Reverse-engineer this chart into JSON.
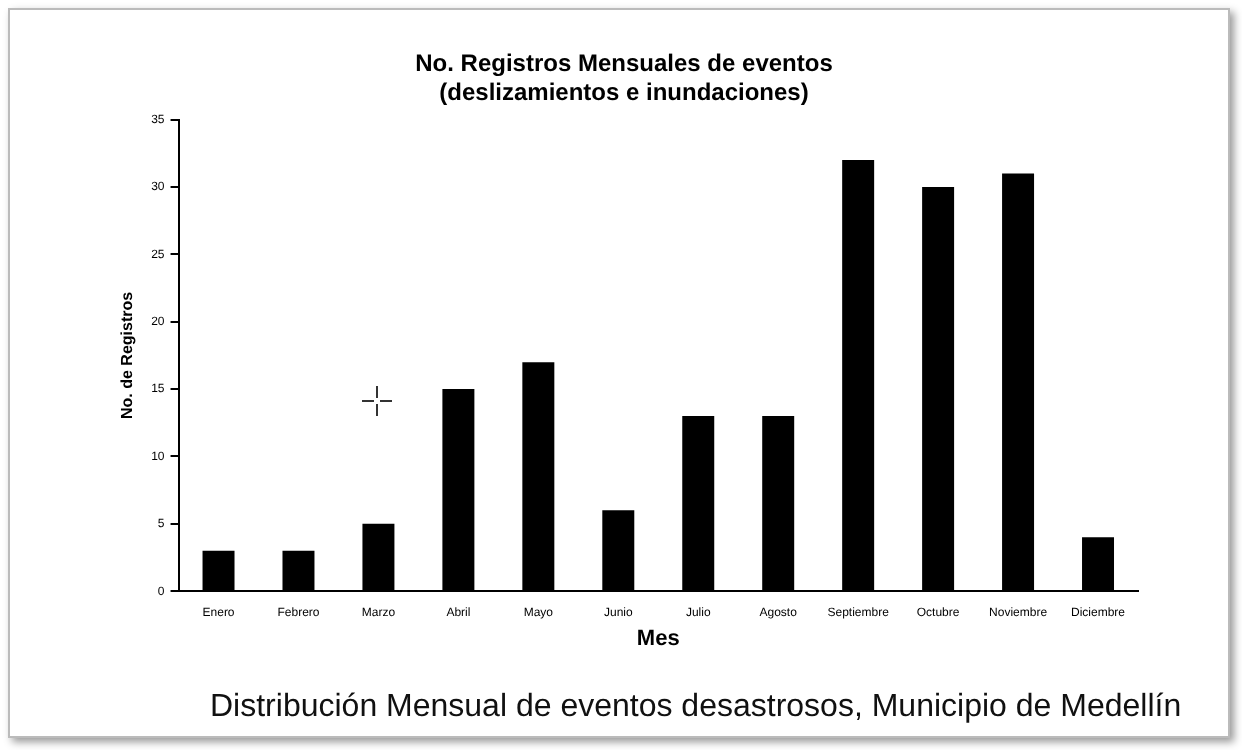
{
  "chart_data": {
    "type": "bar",
    "title": "No. Registros Mensuales de eventos\n(deslizamientos e inundaciones)",
    "xlabel": "Mes",
    "ylabel": "No. de Registros",
    "categories": [
      "Enero",
      "Febrero",
      "Marzo",
      "Abril",
      "Mayo",
      "Junio",
      "Julio",
      "Agosto",
      "Septiembre",
      "Octubre",
      "Noviembre",
      "Diciembre"
    ],
    "values": [
      3,
      3,
      5,
      15,
      17,
      6,
      13,
      13,
      32,
      30,
      31,
      4
    ],
    "color": "#000000",
    "ylim": [
      0,
      35
    ],
    "yticks": [
      0,
      5,
      10,
      15,
      20,
      25,
      30,
      35
    ],
    "grid": false,
    "legend": false,
    "annotations": [
      "Distribución Mensual de eventos desastrosos, Municipio de Medellín"
    ]
  }
}
